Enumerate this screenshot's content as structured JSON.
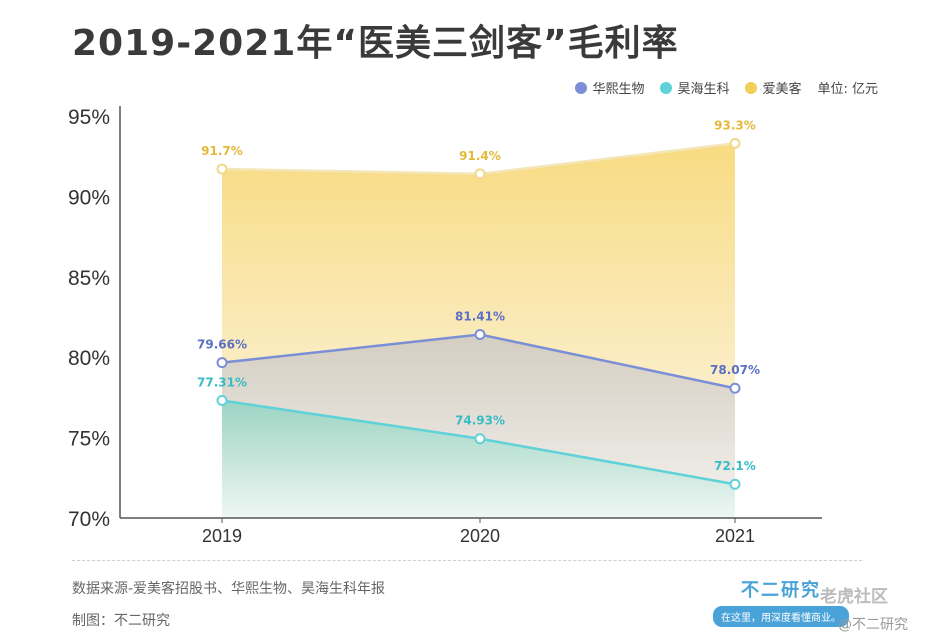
{
  "title": "2019-2021年“医美三剑客”毛利率",
  "legend": {
    "items": [
      {
        "label": "华熙生物",
        "color": "#7b8fd6"
      },
      {
        "label": "昊海生科",
        "color": "#5fd2d8"
      },
      {
        "label": "爱美客",
        "color": "#f2cf58"
      }
    ],
    "unit": "单位: 亿元"
  },
  "chart_data": {
    "type": "area",
    "categories": [
      "2019",
      "2020",
      "2021"
    ],
    "ylim": [
      70,
      95
    ],
    "yticks": [
      "70%",
      "75%",
      "80%",
      "85%",
      "90%",
      "95%"
    ],
    "series": [
      {
        "name": "爱美客",
        "values": [
          91.7,
          91.4,
          93.3
        ],
        "labels": [
          "91.7%",
          "91.4%",
          "93.3%"
        ],
        "color": "#f2cf58"
      },
      {
        "name": "华熙生物",
        "values": [
          79.66,
          81.41,
          78.07
        ],
        "labels": [
          "79.66%",
          "81.41%",
          "78.07%"
        ],
        "color": "#7b8fd6"
      },
      {
        "name": "昊海生科",
        "values": [
          77.31,
          74.93,
          72.1
        ],
        "labels": [
          "77.31%",
          "74.93%",
          "72.1%"
        ],
        "color": "#5fd2d8"
      }
    ]
  },
  "footer": {
    "source": "数据来源-爱美客招股书、华熙生物、昊海生科年报",
    "credit": "制图：不二研究"
  },
  "brand": {
    "name": "不二研究",
    "slogan": "在这里，用深度看懂商业。"
  },
  "watermark": {
    "site": "老虎社区",
    "handle": "@不二研究"
  }
}
